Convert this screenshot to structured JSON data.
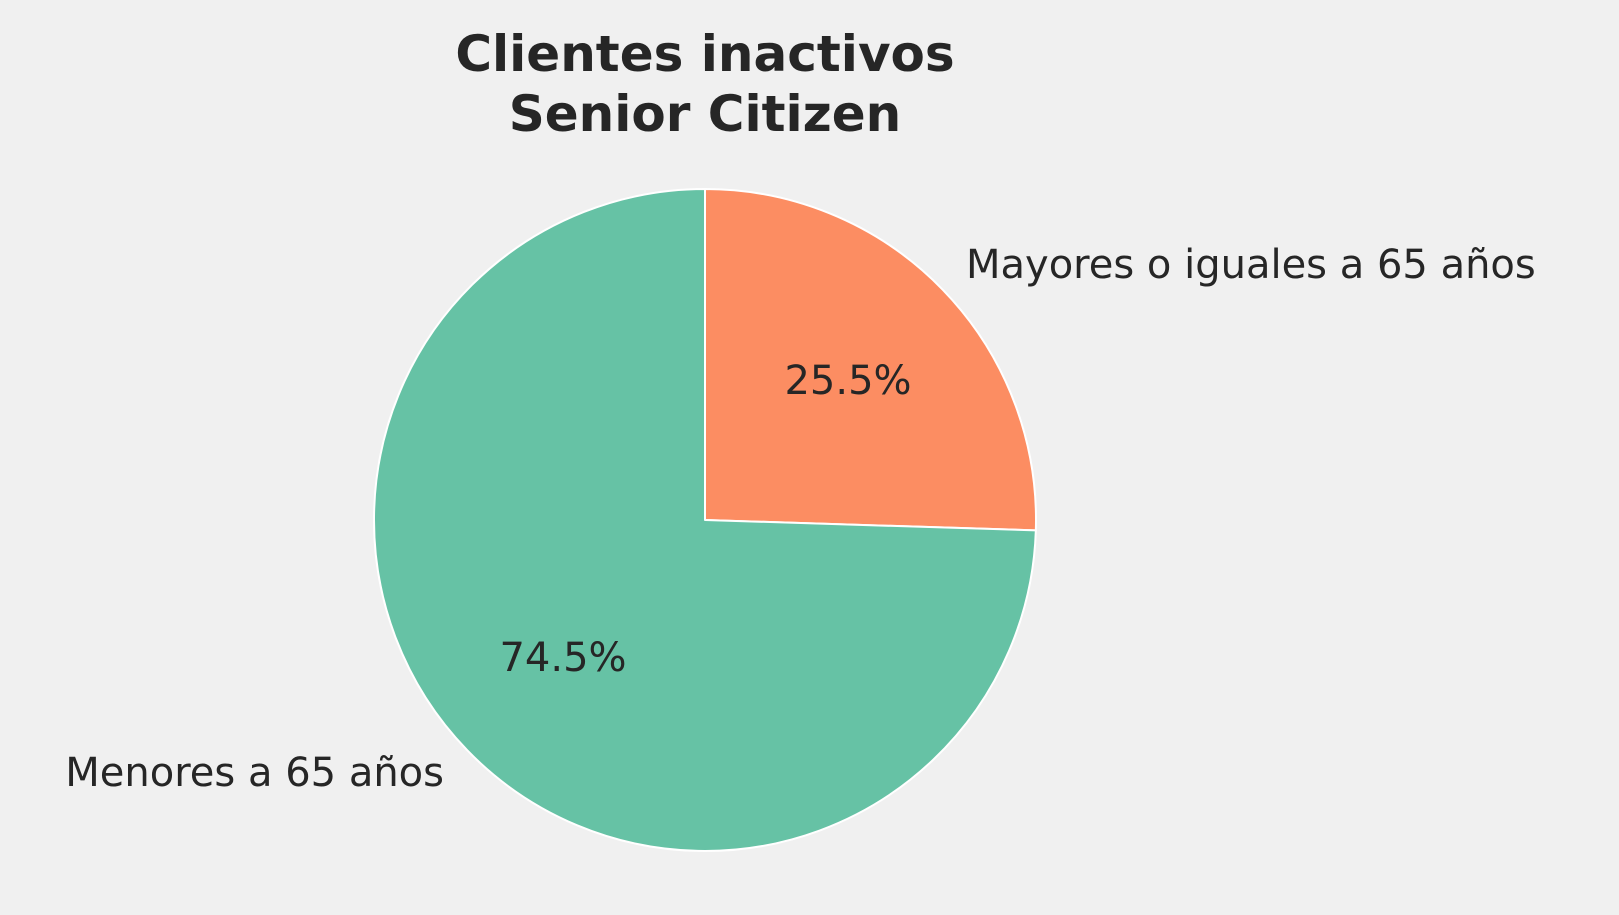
{
  "chart_data": {
    "type": "pie",
    "title_lines": [
      "Clientes inactivos",
      "Senior Citizen"
    ],
    "slices": [
      {
        "label": "Mayores o iguales a 65 años",
        "value": 25.5,
        "pct_label": "25.5%",
        "color": "#fc8d62"
      },
      {
        "label": "Menores a 65 años",
        "value": 74.5,
        "pct_label": "74.5%",
        "color": "#66c2a5"
      }
    ],
    "start_angle": 90,
    "direction": "clockwise",
    "edge_color": "#ffffff"
  }
}
